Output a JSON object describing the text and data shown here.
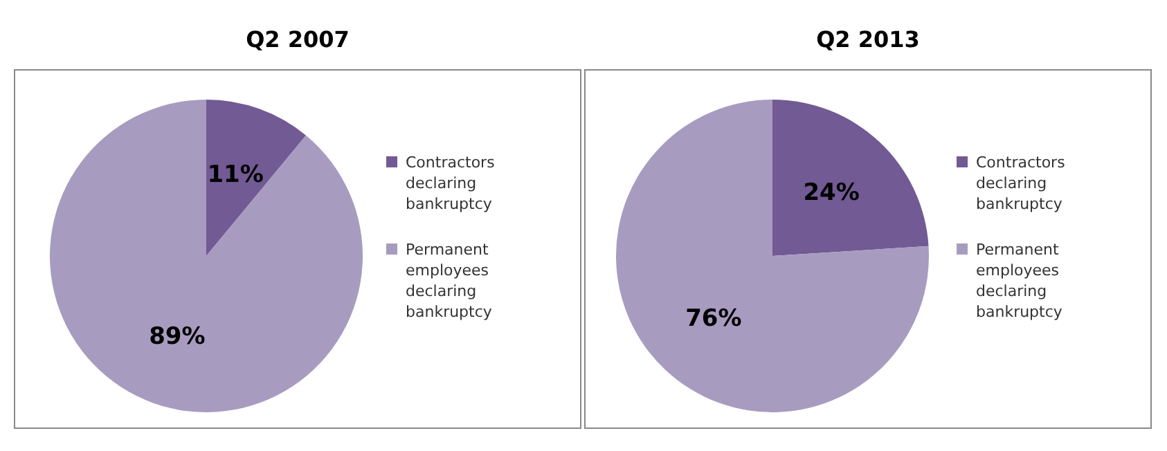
{
  "chart_data": [
    {
      "type": "pie",
      "title": "Q2 2007",
      "categories": [
        "Contractors declaring bankruptcy",
        "Permanent employees declaring bankruptcy"
      ],
      "values": [
        11,
        89
      ],
      "colors": [
        "#725a94",
        "#a89bc0"
      ],
      "value_labels": [
        "11%",
        "89%"
      ],
      "legend": "right"
    },
    {
      "type": "pie",
      "title": "Q2 2013",
      "categories": [
        "Contractors declaring bankruptcy",
        "Permanent employees declaring bankruptcy"
      ],
      "values": [
        24,
        76
      ],
      "colors": [
        "#725a94",
        "#a89bc0"
      ],
      "value_labels": [
        "24%",
        "76%"
      ],
      "legend": "right"
    }
  ]
}
